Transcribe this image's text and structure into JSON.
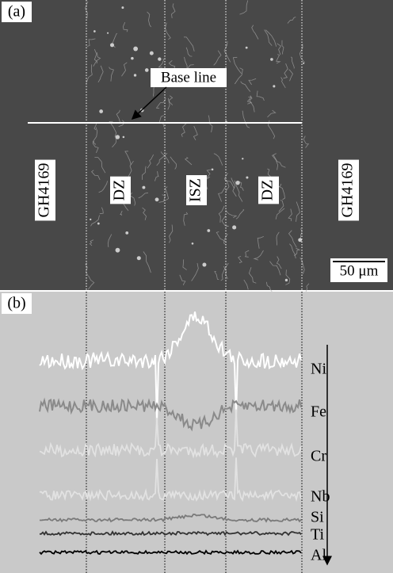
{
  "panel_a": {
    "label": "(a)",
    "base_line": "Base line",
    "zones": [
      "GH4169",
      "DZ",
      "ISZ",
      "DZ",
      "GH4169"
    ],
    "scale_bar": "50 μm"
  },
  "panel_b": {
    "label": "(b)",
    "elements": [
      "Ni",
      "Fe",
      "Cr",
      "Nb",
      "Si",
      "Ti",
      "Al"
    ]
  }
}
